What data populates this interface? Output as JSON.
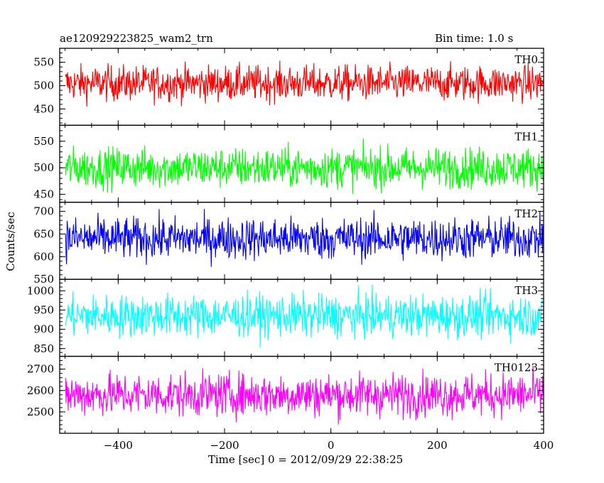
{
  "header": {
    "source": "ae120929223825_wam2_trn",
    "bin_time": "Bin time: 1.0 s"
  },
  "chart_data": {
    "type": "line",
    "title": "ae120929223825_wam2_trn",
    "subtitle": "Bin time: 1.0 s",
    "xlabel": "Time [sec] 0 = 2012/09/29 22:38:25",
    "ylabel": "Counts/sec",
    "xlim": [
      -510,
      400
    ],
    "x_ticks": [
      -400,
      -200,
      0,
      200,
      400
    ],
    "x_tick_labels": [
      "−400",
      "−200",
      "0",
      "200",
      "400"
    ],
    "x_range_data": [
      -499,
      399
    ],
    "grid": false,
    "panels": [
      {
        "name": "TH0",
        "color": "#ff0000",
        "ylim": [
          415,
          580
        ],
        "y_ticks": [
          450,
          500,
          550
        ],
        "y_tick_labels": [
          "450",
          "500",
          "550"
        ],
        "mean": 505,
        "amplitude": 45
      },
      {
        "name": "TH1",
        "color": "#00ff00",
        "ylim": [
          435,
          580
        ],
        "y_ticks": [
          450,
          500,
          550
        ],
        "y_tick_labels": [
          "450",
          "500",
          "550"
        ],
        "mean": 500,
        "amplitude": 45
      },
      {
        "name": "TH2",
        "color": "#0000ff",
        "ylim": [
          550,
          720
        ],
        "y_ticks": [
          550,
          600,
          650,
          700
        ],
        "y_tick_labels": [
          "550",
          "600",
          "650",
          "700"
        ],
        "mean": 640,
        "amplitude": 55
      },
      {
        "name": "TH3",
        "color": "#00ffff",
        "ylim": [
          830,
          1030
        ],
        "y_ticks": [
          850,
          900,
          950,
          1000
        ],
        "y_tick_labels": [
          "850",
          "900",
          "950",
          "1000"
        ],
        "mean": 935,
        "amplitude": 65
      },
      {
        "name": "TH0123",
        "color": "#ff00ff",
        "ylim": [
          2400,
          2760
        ],
        "y_ticks": [
          2500,
          2600,
          2700
        ],
        "y_tick_labels": [
          "2500",
          "2600",
          "2700"
        ],
        "mean": 2580,
        "amplitude": 120
      }
    ]
  }
}
